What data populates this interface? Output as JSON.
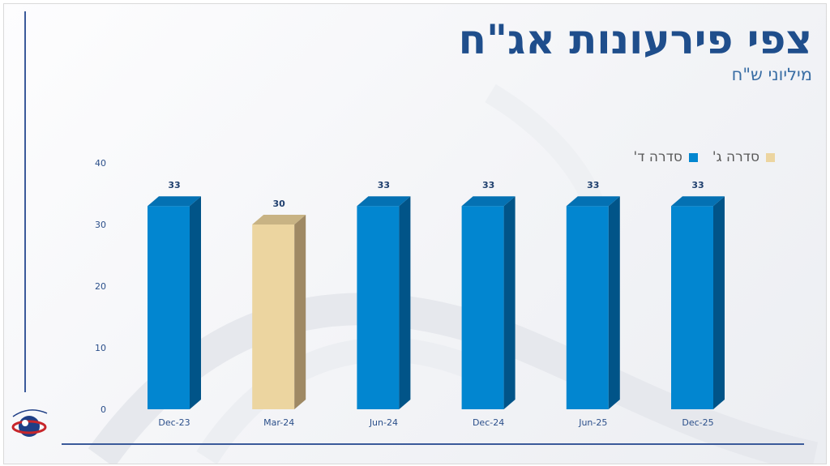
{
  "header": {
    "title": "צפי פירעונות אג\"ח",
    "subtitle": "מיליוני ש\"ח"
  },
  "legend": {
    "items": [
      {
        "label": "סדרה ג'",
        "color": "#ecd5a0"
      },
      {
        "label": "סדרה ד'",
        "color": "#0286d0"
      }
    ]
  },
  "colors": {
    "series_d_front": "#0286d0",
    "series_d_top": "#0471b3",
    "series_d_side": "#015488",
    "series_c_front": "#ecd5a0",
    "series_c_top": "#c8b384",
    "series_c_side": "#9f8964",
    "axis_text": "#2b4f8a",
    "accent_line": "#3b5a9a"
  },
  "chart_data": {
    "type": "bar",
    "categories": [
      "Dec-23",
      "Mar-24",
      "Jun-24",
      "Dec-24",
      "Jun-25",
      "Dec-25"
    ],
    "series": [
      {
        "name": "סדרה ד'",
        "values": [
          33,
          null,
          33,
          33,
          33,
          33
        ]
      },
      {
        "name": "סדרה ג'",
        "values": [
          null,
          30,
          null,
          null,
          null,
          null
        ]
      }
    ],
    "values": [
      33,
      30,
      33,
      33,
      33,
      33
    ],
    "data_labels": [
      "33",
      "30",
      "33",
      "33",
      "33",
      "33"
    ],
    "series_of_bar": [
      "d",
      "c",
      "d",
      "d",
      "d",
      "d"
    ],
    "yticks": [
      0,
      10,
      20,
      30,
      40
    ],
    "ylim": [
      0,
      40
    ],
    "xlabel": "",
    "ylabel": "",
    "grid": false,
    "legend_position": "top-right"
  }
}
